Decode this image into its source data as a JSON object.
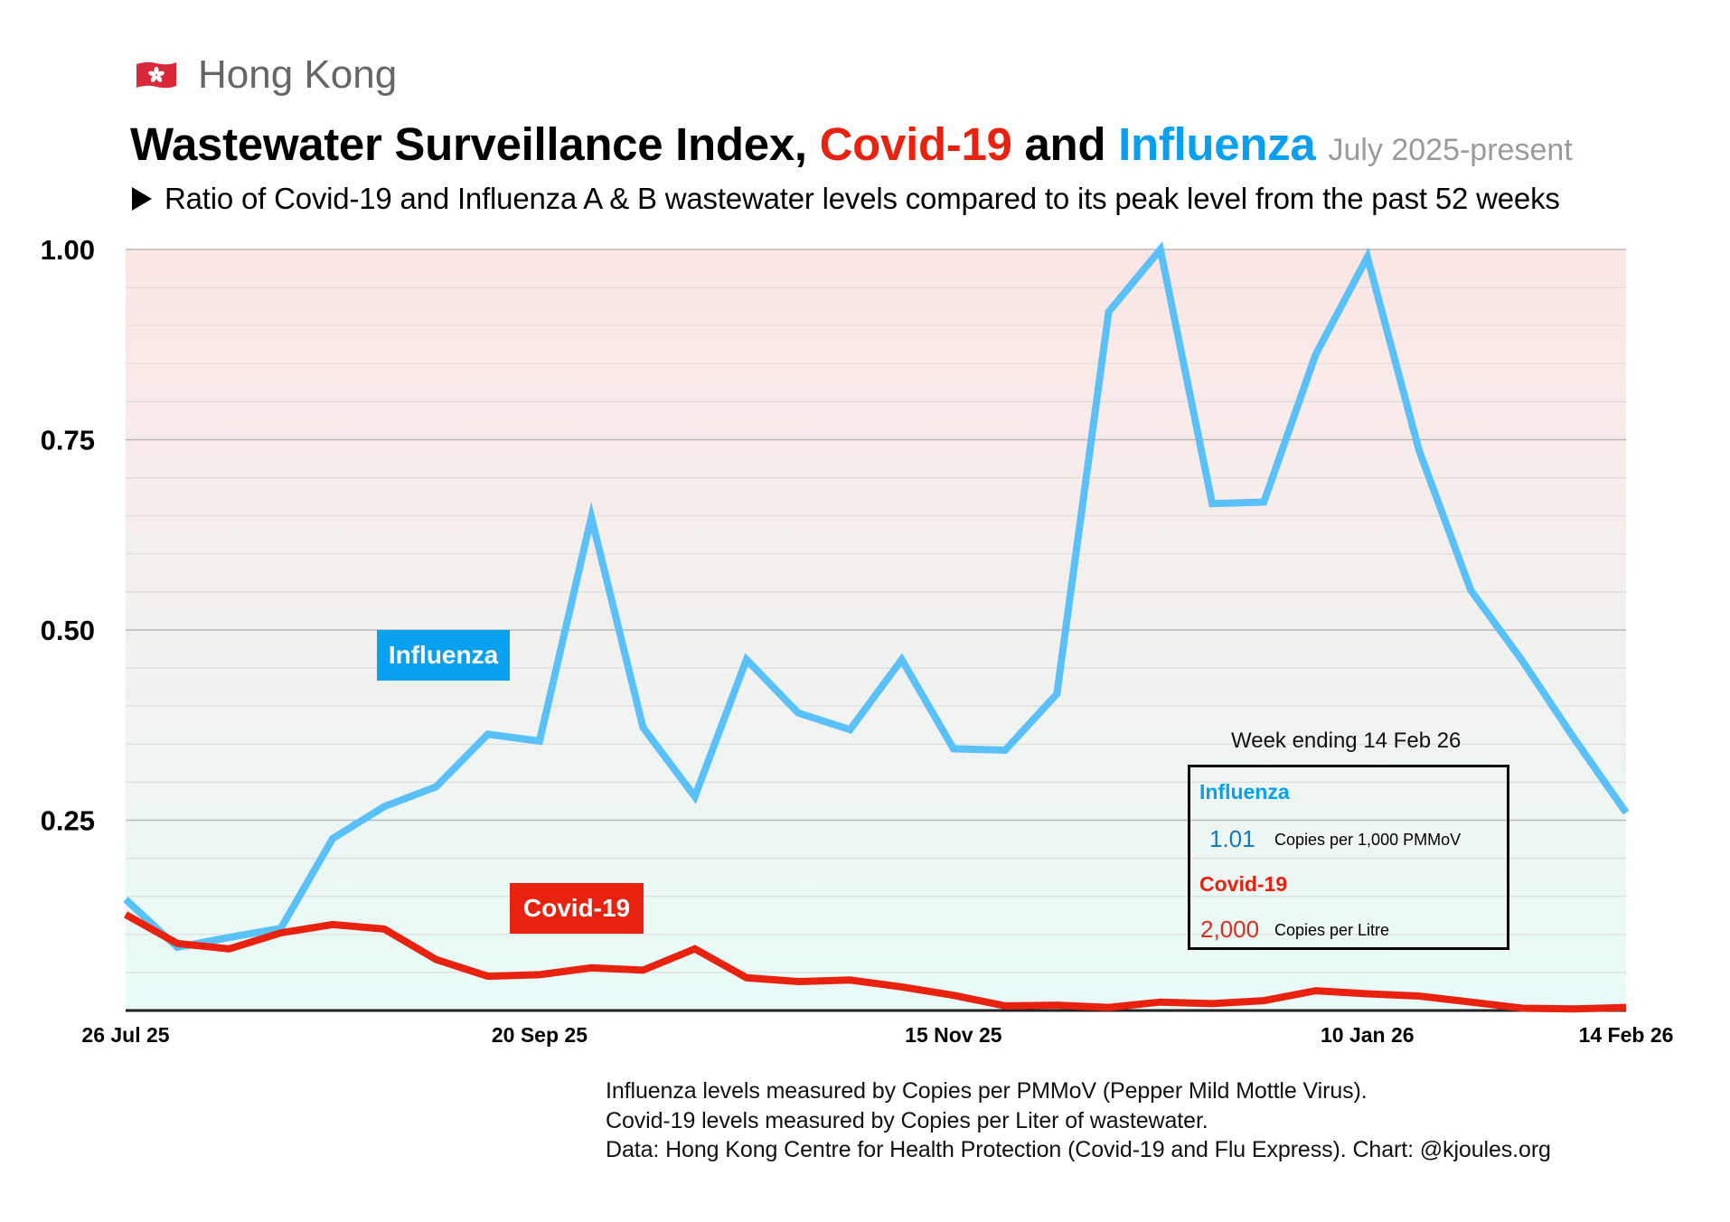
{
  "header": {
    "region_flag_icon": "hong-kong-flag-icon",
    "region_name": "Hong Kong",
    "title_part1": "Wastewater Surveillance Index, ",
    "title_covid": "Covid-19",
    "title_and": " and ",
    "title_flu": "Influenza",
    "title_period": "July 2025-present",
    "subtitle": "Ratio of Covid-19 and Influenza A & B wastewater levels compared to its peak level from the past 52 weeks"
  },
  "colors": {
    "covid": "#e8220f",
    "influenza_line": "#5ac0f8",
    "influenza_label": "#0aa0f0",
    "background_top": "#fce6e4",
    "background_bottom": "#e8fbf8"
  },
  "series_labels": {
    "influenza": "Influenza",
    "covid": "Covid-19"
  },
  "summary": {
    "title": "Week ending 14 Feb 26",
    "influenza_name": "Influenza",
    "influenza_value": "1.01",
    "influenza_unit": "Copies per 1,000 PMMoV",
    "covid_name": "Covid-19",
    "covid_value": "2,000",
    "covid_unit": "Copies per Litre"
  },
  "notes": [
    "Influenza levels measured by Copies per PMMoV (Pepper Mild Mottle Virus).",
    "Covid-19 levels measured by Copies per Liter of wastewater.",
    "Data: Hong Kong Centre for Health Protection (Covid-19 and Flu Express). Chart: @kjoules.org"
  ],
  "chart_data": {
    "type": "line",
    "title": "Wastewater Surveillance Index, Covid-19 and Influenza",
    "subtitle": "Ratio of Covid-19 and Influenza A & B wastewater levels compared to its peak level from the past 52 weeks",
    "xlabel": "",
    "ylabel": "",
    "x_interval": "weekly",
    "x_start": "26 Jul 25",
    "x_end": "14 Feb 26",
    "n_points": 30,
    "xticks": [
      {
        "index": 0,
        "label": "26 Jul 25"
      },
      {
        "index": 8,
        "label": "20 Sep 25"
      },
      {
        "index": 16,
        "label": "15 Nov 25"
      },
      {
        "index": 24,
        "label": "10 Jan 26"
      },
      {
        "index": 29,
        "label": "14 Feb 26"
      }
    ],
    "ylim": [
      0,
      1.0
    ],
    "yticks": [
      {
        "value": 0.25,
        "label": "0.25"
      },
      {
        "value": 0.5,
        "label": "0.50"
      },
      {
        "value": 0.75,
        "label": "0.75"
      },
      {
        "value": 1.0,
        "label": "1.00"
      }
    ],
    "minor_grid_step": 0.05,
    "grid": true,
    "series": [
      {
        "name": "Influenza",
        "color": "#5ac0f8",
        "values": [
          0.146,
          0.083,
          0.096,
          0.108,
          0.226,
          0.268,
          0.294,
          0.363,
          0.354,
          0.648,
          0.372,
          0.281,
          0.461,
          0.391,
          0.369,
          0.461,
          0.344,
          0.342,
          0.416,
          0.918,
          1.0,
          0.666,
          0.668,
          0.862,
          0.99,
          0.736,
          0.552,
          0.459,
          0.357,
          0.26
        ]
      },
      {
        "name": "Covid-19",
        "color": "#e8220f",
        "values": [
          0.126,
          0.088,
          0.081,
          0.102,
          0.113,
          0.107,
          0.067,
          0.045,
          0.047,
          0.056,
          0.053,
          0.081,
          0.043,
          0.038,
          0.04,
          0.031,
          0.02,
          0.006,
          0.007,
          0.004,
          0.011,
          0.009,
          0.013,
          0.026,
          0.022,
          0.019,
          0.011,
          0.003,
          0.002,
          0.004
        ]
      }
    ]
  }
}
